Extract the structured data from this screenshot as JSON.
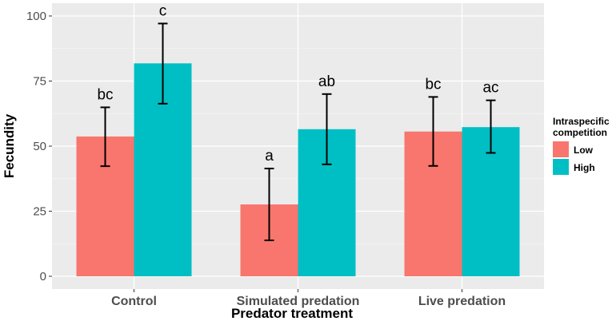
{
  "chart_data": {
    "type": "bar",
    "xlabel": "Predator treatment",
    "ylabel": "Fecundity",
    "ylim": [
      0,
      100
    ],
    "yticks": [
      0,
      25,
      50,
      75,
      100
    ],
    "categories": [
      "Control",
      "Simulated predation",
      "Live predation"
    ],
    "series": [
      {
        "name": "Low",
        "color": "#F8766D",
        "values": [
          53.7,
          27.6,
          55.6
        ],
        "err_low": [
          42.3,
          13.8,
          42.4
        ],
        "err_high": [
          64.9,
          41.4,
          68.9
        ],
        "sig": [
          "bc",
          "a",
          "bc"
        ]
      },
      {
        "name": "High",
        "color": "#00BFC4",
        "values": [
          81.8,
          56.5,
          57.3
        ],
        "err_low": [
          66.3,
          43.0,
          47.4
        ],
        "err_high": [
          97.1,
          70.0,
          67.6
        ],
        "sig": [
          "c",
          "ab",
          "ac"
        ]
      }
    ],
    "legend": {
      "title_line1": "Intraspecific",
      "title_line2": "competition",
      "position": "right"
    }
  }
}
